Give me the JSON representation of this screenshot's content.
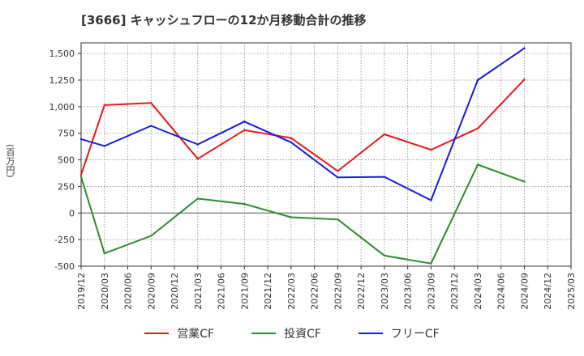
{
  "chart_data": {
    "type": "line",
    "title": "[3666]  キャッシュフローの12か月移動合計の推移",
    "ylabel": "(百万円)",
    "x": [
      "2019/12",
      "2020/03",
      "2020/06",
      "2020/09",
      "2020/12",
      "2021/03",
      "2021/06",
      "2021/09",
      "2021/12",
      "2022/03",
      "2022/06",
      "2022/09",
      "2022/12",
      "2023/03",
      "2023/06",
      "2023/09",
      "2023/12",
      "2024/03",
      "2024/06",
      "2024/09",
      "2024/12",
      "2025/03"
    ],
    "ylim": [
      -500,
      1600
    ],
    "yticks": [
      -500,
      -250,
      0,
      250,
      500,
      750,
      1000,
      1250,
      1500
    ],
    "ytick_labels": [
      "-500",
      "-250",
      "0",
      "250",
      "500",
      "750",
      "1,000",
      "1,250",
      "1,500"
    ],
    "grid": true,
    "legend_position": "bottom",
    "series": [
      {
        "name": "営業CF",
        "color": "#e31a1c",
        "values": [
          360,
          1015,
          null,
          1035,
          null,
          510,
          null,
          780,
          null,
          705,
          null,
          395,
          null,
          740,
          null,
          595,
          null,
          795,
          null,
          1255,
          null,
          null
        ]
      },
      {
        "name": "投資CF",
        "color": "#2e8b2e",
        "values": [
          340,
          -380,
          null,
          -215,
          null,
          135,
          null,
          85,
          null,
          -40,
          null,
          -60,
          null,
          -400,
          null,
          -475,
          null,
          455,
          null,
          295,
          null,
          null
        ]
      },
      {
        "name": "フリーCF",
        "color": "#1a1adb",
        "values": [
          695,
          630,
          null,
          820,
          null,
          645,
          null,
          860,
          null,
          665,
          null,
          335,
          null,
          340,
          null,
          120,
          null,
          1250,
          null,
          1550,
          null,
          null
        ]
      }
    ]
  }
}
